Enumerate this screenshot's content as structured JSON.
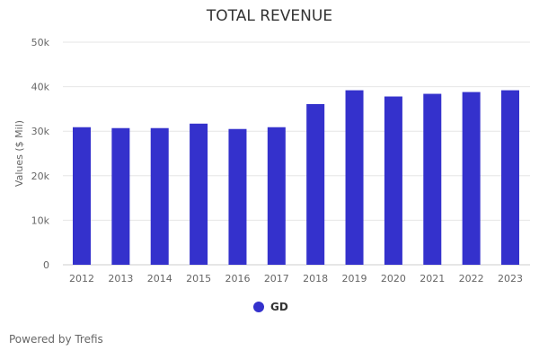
{
  "chart_data": {
    "type": "bar",
    "title": "TOTAL REVENUE",
    "xlabel": "",
    "ylabel": "Values ($ Mil)",
    "ylim": [
      0,
      50000
    ],
    "yticks": [
      0,
      10000,
      20000,
      30000,
      40000,
      50000
    ],
    "ytick_labels": [
      "0",
      "10k",
      "20k",
      "30k",
      "40k",
      "50k"
    ],
    "categories": [
      "2012",
      "2013",
      "2014",
      "2015",
      "2016",
      "2017",
      "2018",
      "2019",
      "2020",
      "2021",
      "2022",
      "2023"
    ],
    "series": [
      {
        "name": "GD",
        "color": "#3431cc",
        "values": [
          30900,
          30700,
          30700,
          31700,
          30500,
          30900,
          36100,
          39200,
          37800,
          38400,
          38800,
          39200
        ]
      }
    ],
    "grid": true,
    "legend": "bottom"
  },
  "footer": "Powered by Trefis"
}
